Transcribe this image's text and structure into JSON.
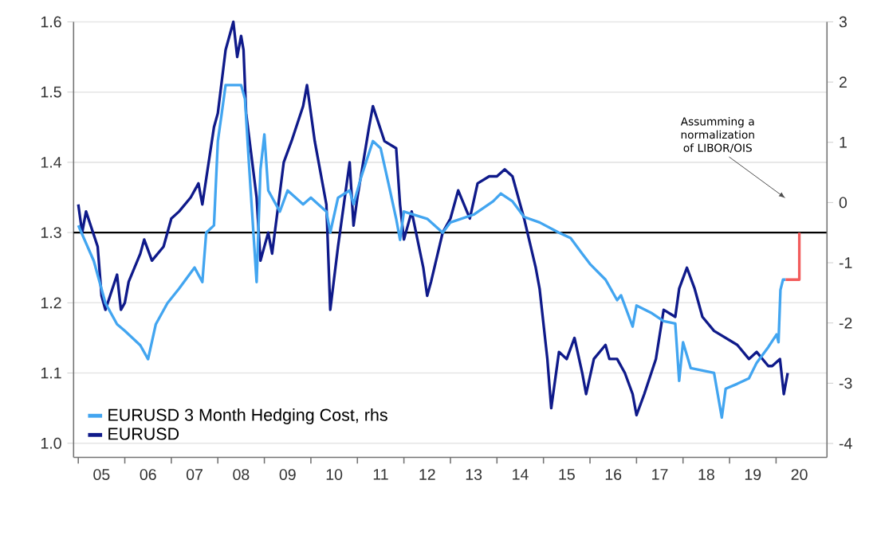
{
  "chart_data": {
    "type": "line",
    "xlim": [
      "2004-11-25",
      "2021-02-05"
    ],
    "xticks": [
      {
        "value": "2005-07-01",
        "label": "05"
      },
      {
        "value": "2006-07-01",
        "label": "06"
      },
      {
        "value": "2007-07-01",
        "label": "07"
      },
      {
        "value": "2008-07-01",
        "label": "08"
      },
      {
        "value": "2009-07-01",
        "label": "09"
      },
      {
        "value": "2010-07-01",
        "label": "10"
      },
      {
        "value": "2011-07-01",
        "label": "11"
      },
      {
        "value": "2012-07-01",
        "label": "12"
      },
      {
        "value": "2013-07-01",
        "label": "13"
      },
      {
        "value": "2014-07-01",
        "label": "14"
      },
      {
        "value": "2015-07-01",
        "label": "15"
      },
      {
        "value": "2016-07-01",
        "label": "16"
      },
      {
        "value": "2017-07-01",
        "label": "17"
      },
      {
        "value": "2018-07-01",
        "label": "18"
      },
      {
        "value": "2019-07-01",
        "label": "19"
      },
      {
        "value": "2020-07-01",
        "label": "20"
      },
      {
        "value": "2005-01-01",
        "label": null
      },
      {
        "value": "2006-01-01",
        "label": null
      },
      {
        "value": "2007-01-01",
        "label": null
      },
      {
        "value": "2008-01-01",
        "label": null
      },
      {
        "value": "2009-01-01",
        "label": null
      },
      {
        "value": "2010-01-01",
        "label": null
      },
      {
        "value": "2011-01-01",
        "label": null
      },
      {
        "value": "2012-01-01",
        "label": null
      },
      {
        "value": "2013-01-01",
        "label": null
      },
      {
        "value": "2014-01-01",
        "label": null
      },
      {
        "value": "2015-01-01",
        "label": null
      },
      {
        "value": "2016-01-01",
        "label": null
      },
      {
        "value": "2017-01-01",
        "label": null
      },
      {
        "value": "2018-01-01",
        "label": null
      },
      {
        "value": "2019-01-01",
        "label": null
      },
      {
        "value": "2020-01-01",
        "label": null
      }
    ],
    "ylim": [
      0.98,
      1.6
    ],
    "yticks": [
      {
        "value": 1.0,
        "label": "1.0"
      },
      1.1,
      1.2,
      1.3,
      1.4,
      1.5,
      1.6
    ],
    "y2lim": [
      -4.23,
      3
    ],
    "y2ticks": [
      -4,
      -3,
      -2,
      -1,
      0,
      1,
      2,
      3
    ],
    "grid": "y",
    "legend": "bottom left",
    "line_style": "solid",
    "ref_lines": [
      {
        "axis": "y",
        "value": 1.3,
        "color": "#000000"
      }
    ],
    "annotations": [
      "Assumming a normalization of LIBOR/OIS"
    ],
    "series": [
      {
        "name": "EURUSD 3 Month Hedging Cost, rhs",
        "color": "#42a5f0",
        "axis": "y2",
        "x": [
          "2005-01",
          "2005-05",
          "2005-08",
          "2005-11",
          "2006-01",
          "2006-05",
          "2006-07",
          "2006-09",
          "2006-12",
          "2007-03",
          "2007-07",
          "2007-09",
          "2007-10",
          "2007-12",
          "2008-01",
          "2008-02",
          "2008-03",
          "2008-07",
          "2008-08",
          "2008-09",
          "2008-11",
          "2008-12",
          "2009-01",
          "2009-02",
          "2009-05",
          "2009-07",
          "2009-11",
          "2010-01",
          "2010-05",
          "2010-06",
          "2010-08",
          "2010-11",
          "2010-12",
          "2011-02",
          "2011-05",
          "2011-07",
          "2011-09",
          "2011-11",
          "2011-12",
          "2012-01",
          "2012-07",
          "2012-11",
          "2013-01",
          "2013-07",
          "2013-12",
          "2014-02",
          "2014-05",
          "2014-08",
          "2014-12",
          "2015-05",
          "2015-08",
          "2015-11",
          "2016-01",
          "2016-05",
          "2016-08",
          "2016-09",
          "2016-12",
          "2017-01",
          "2017-05",
          "2017-08",
          "2017-11",
          "2017-12",
          "2018-01",
          "2018-03",
          "2018-06",
          "2018-09",
          "2018-11",
          "2018-12",
          "2019-03",
          "2019-06",
          "2019-08",
          "2019-11",
          "2020-01-05",
          "2020-01-20",
          "2020-02-05",
          "2020-02-25",
          "2020-03-15"
        ],
        "values": [
          -0.38,
          -0.97,
          -1.67,
          -2.02,
          -2.13,
          -2.37,
          -2.6,
          -2.02,
          -1.67,
          -1.43,
          -1.08,
          -1.32,
          -0.5,
          -0.38,
          1.02,
          1.48,
          1.95,
          1.95,
          1.72,
          0.67,
          -1.32,
          0.55,
          1.13,
          0.2,
          -0.15,
          0.2,
          -0.03,
          0.08,
          -0.15,
          -0.5,
          0.08,
          0.2,
          -0.03,
          0.43,
          1.02,
          0.9,
          0.32,
          -0.27,
          -0.62,
          -0.15,
          -0.27,
          -0.5,
          -0.33,
          -0.2,
          0.02,
          0.15,
          0.02,
          -0.24,
          -0.33,
          -0.5,
          -0.59,
          -0.85,
          -1.02,
          -1.28,
          -1.62,
          -1.54,
          -2.06,
          -1.71,
          -1.84,
          -1.97,
          -2.01,
          -2.96,
          -2.32,
          -2.75,
          -2.79,
          -2.83,
          -3.57,
          -3.09,
          -3.01,
          -2.92,
          -2.66,
          -2.4,
          -2.19,
          -2.32,
          -1.45,
          -1.28,
          -1.28
        ]
      },
      {
        "name": "EURUSD",
        "color": "#0f1a8a",
        "x": [
          "2005-01",
          "2005-02",
          "2005-03",
          "2005-06",
          "2005-07",
          "2005-08",
          "2005-11",
          "2005-12",
          "2006-01",
          "2006-02",
          "2006-05",
          "2006-06",
          "2006-08",
          "2006-11",
          "2007-01",
          "2007-03",
          "2007-06",
          "2007-08",
          "2007-09",
          "2007-12",
          "2008-01",
          "2008-03",
          "2008-05",
          "2008-06",
          "2008-07-01",
          "2008-07-20",
          "2008-08-10",
          "2008-11",
          "2008-12",
          "2009-02",
          "2009-03",
          "2009-06",
          "2009-08",
          "2009-11",
          "2009-12",
          "2010-02",
          "2010-05",
          "2010-06",
          "2010-08",
          "2010-11",
          "2010-12",
          "2011-01",
          "2011-04",
          "2011-05",
          "2011-08",
          "2011-11",
          "2011-12",
          "2012-01",
          "2012-03",
          "2012-06",
          "2012-07",
          "2012-08",
          "2012-11",
          "2013-01",
          "2013-03",
          "2013-06",
          "2013-08",
          "2013-11",
          "2014-01",
          "2014-03",
          "2014-05",
          "2014-08",
          "2014-11",
          "2014-12",
          "2015-02",
          "2015-03",
          "2015-05",
          "2015-07",
          "2015-09",
          "2015-11",
          "2015-12",
          "2016-02",
          "2016-05",
          "2016-06",
          "2016-08",
          "2016-10",
          "2016-12",
          "2017-01",
          "2017-03",
          "2017-06",
          "2017-08",
          "2017-11",
          "2017-12",
          "2018-02",
          "2018-04",
          "2018-06",
          "2018-09",
          "2018-12",
          "2019-03",
          "2019-06",
          "2019-08",
          "2019-11",
          "2019-12",
          "2020-02",
          "2020-03",
          "2020-04"
        ],
        "values": [
          1.34,
          1.3,
          1.33,
          1.28,
          1.21,
          1.19,
          1.24,
          1.19,
          1.2,
          1.23,
          1.27,
          1.29,
          1.26,
          1.28,
          1.32,
          1.33,
          1.35,
          1.37,
          1.34,
          1.45,
          1.47,
          1.56,
          1.6,
          1.55,
          1.58,
          1.56,
          1.47,
          1.35,
          1.26,
          1.3,
          1.27,
          1.4,
          1.43,
          1.48,
          1.51,
          1.43,
          1.34,
          1.19,
          1.28,
          1.4,
          1.31,
          1.35,
          1.45,
          1.48,
          1.43,
          1.42,
          1.34,
          1.29,
          1.33,
          1.25,
          1.21,
          1.23,
          1.3,
          1.32,
          1.36,
          1.32,
          1.37,
          1.38,
          1.38,
          1.39,
          1.38,
          1.32,
          1.25,
          1.22,
          1.12,
          1.05,
          1.13,
          1.12,
          1.15,
          1.1,
          1.07,
          1.12,
          1.14,
          1.12,
          1.12,
          1.1,
          1.07,
          1.04,
          1.07,
          1.12,
          1.19,
          1.18,
          1.22,
          1.25,
          1.22,
          1.18,
          1.16,
          1.15,
          1.14,
          1.12,
          1.13,
          1.11,
          1.11,
          1.12,
          1.07,
          1.1
        ]
      },
      {
        "color": "#f25c5c",
        "axis": "y2",
        "x": [
          "2020-03-15",
          "2020-07-01",
          "2020-07-01"
        ],
        "values": [
          -1.28,
          -1.28,
          -0.5
        ]
      }
    ]
  }
}
